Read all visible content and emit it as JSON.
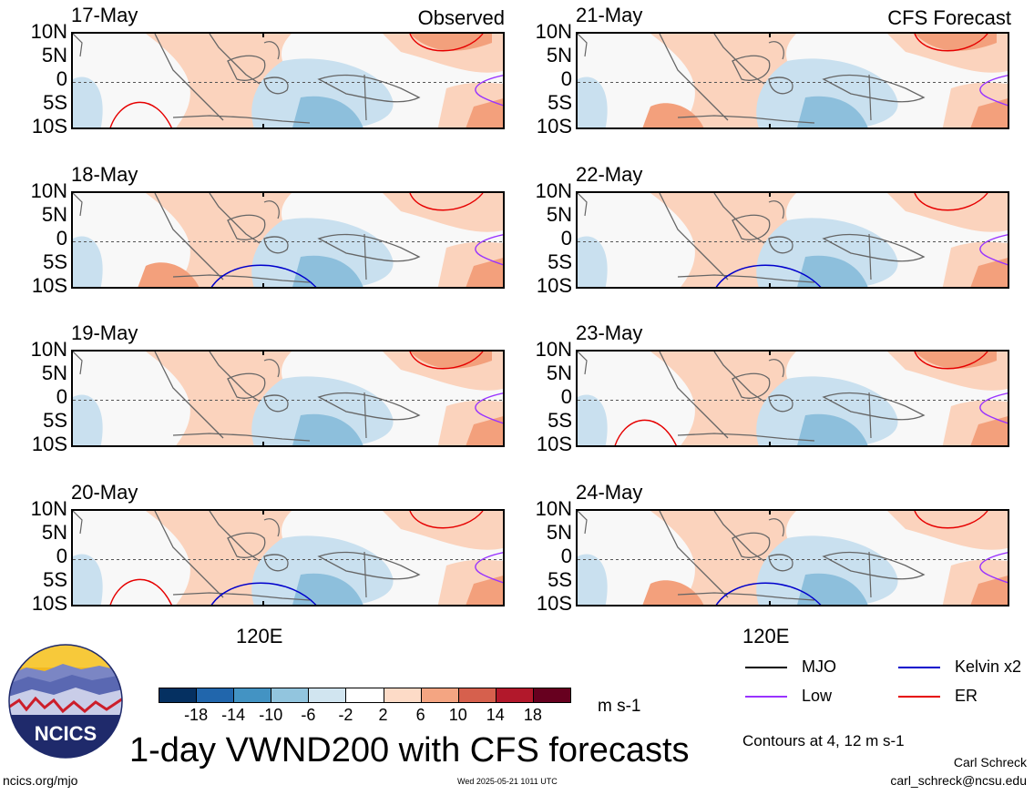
{
  "left_header": "Observed",
  "right_header": "CFS Forecast",
  "lat_labels": [
    "10N",
    "5N",
    "0",
    "5S",
    "10S"
  ],
  "lon_label": "120E",
  "panels_left": [
    {
      "date": "17-May"
    },
    {
      "date": "18-May"
    },
    {
      "date": "19-May"
    },
    {
      "date": "20-May"
    }
  ],
  "panels_right": [
    {
      "date": "21-May"
    },
    {
      "date": "22-May"
    },
    {
      "date": "23-May"
    },
    {
      "date": "24-May"
    }
  ],
  "legend": [
    {
      "label": "MJO",
      "color": "#000000"
    },
    {
      "label": "Kelvin x2",
      "color": "#0000cc"
    },
    {
      "label": "Low",
      "color": "#9933ff"
    },
    {
      "label": "ER",
      "color": "#e60000"
    }
  ],
  "colorbar": {
    "colors": [
      "#053061",
      "#2166ac",
      "#4393c3",
      "#92c5de",
      "#d1e5f0",
      "#ffffff",
      "#fddbc7",
      "#f4a582",
      "#d6604d",
      "#b2182b",
      "#67001f"
    ],
    "ticks": [
      "-18",
      "-14",
      "-10",
      "-6",
      "-2",
      "2",
      "6",
      "10",
      "14",
      "18"
    ],
    "units": "m s-1"
  },
  "title": "1-day VWND200 with CFS forecasts",
  "contours_note": "Contours at 4, 12 m s-1",
  "author": "Carl Schreck",
  "email": "carl_schreck@ncsu.edu",
  "url": "ncics.org/mjo",
  "timestamp": "Wed 2025-05-21 1011 UTC",
  "logo_text": "NCICS"
}
